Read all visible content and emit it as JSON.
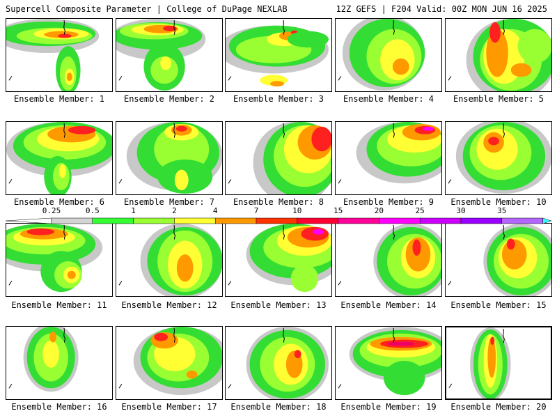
{
  "header": {
    "title_left": "Supercell Composite Parameter | College of DuPage NEXLAB",
    "title_right": "12Z GEFS | F204 Valid: 00Z MON JUN 16 2025"
  },
  "colorbar": {
    "labels": [
      "0.25",
      "0.5",
      "1",
      "2",
      "4",
      "7",
      "10",
      "15",
      "20",
      "25",
      "30",
      "35"
    ],
    "colors": [
      "#d3d3d3",
      "#33ff33",
      "#99ff33",
      "#ffff33",
      "#ff9900",
      "#ff3300",
      "#ff0033",
      "#ff0099",
      "#ff00ff",
      "#cc00ff",
      "#9900ff",
      "#b266ff",
      "#33ffff"
    ]
  },
  "panels": [
    {
      "label": "Ensemble Member: 1"
    },
    {
      "label": "Ensemble Member: 2"
    },
    {
      "label": "Ensemble Member: 3"
    },
    {
      "label": "Ensemble Member: 4"
    },
    {
      "label": "Ensemble Member: 5"
    },
    {
      "label": "Ensemble Member: 6"
    },
    {
      "label": "Ensemble Member: 7"
    },
    {
      "label": "Ensemble Member: 8"
    },
    {
      "label": "Ensemble Member: 9"
    },
    {
      "label": "Ensemble Member: 10"
    },
    {
      "label": "Ensemble Member: 11"
    },
    {
      "label": "Ensemble Member: 12"
    },
    {
      "label": "Ensemble Member: 13"
    },
    {
      "label": "Ensemble Member: 14"
    },
    {
      "label": "Ensemble Member: 15"
    },
    {
      "label": "Ensemble Member: 16"
    },
    {
      "label": "Ensemble Member: 17"
    },
    {
      "label": "Ensemble Member: 18"
    },
    {
      "label": "Ensemble Member: 19"
    },
    {
      "label": "Ensemble Member: 20"
    }
  ]
}
